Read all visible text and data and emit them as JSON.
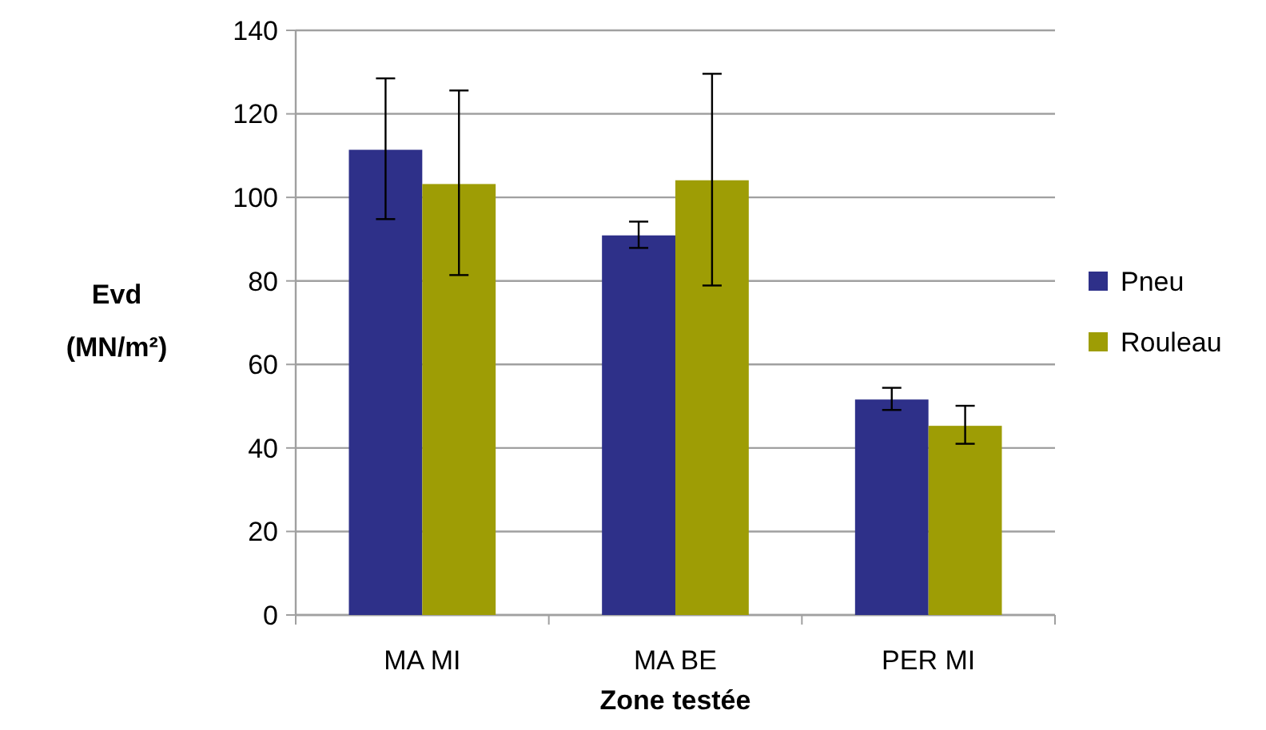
{
  "chart_data": {
    "type": "bar",
    "categories": [
      "MA MI",
      "MA BE",
      "PER MI"
    ],
    "xlabel": "Zone testée",
    "ylabel": "Evd (MN/m²)",
    "ylim": [
      0,
      140
    ],
    "yticks": [
      0,
      20,
      40,
      60,
      80,
      100,
      120,
      140
    ],
    "grid": "y",
    "legend": "right",
    "series": [
      {
        "name": "Pneu",
        "color": "#2e3089",
        "values": [
          111.4,
          90.9,
          51.6
        ],
        "errors": [
          [
            94.8,
            128.5
          ],
          [
            87.9,
            94.2
          ],
          [
            49.1,
            54.4
          ]
        ]
      },
      {
        "name": "Rouleau",
        "color": "#9e9d05",
        "values": [
          103.2,
          104.1,
          45.3
        ],
        "errors": [
          [
            81.4,
            125.6
          ],
          [
            78.9,
            129.6
          ],
          [
            41.0,
            50.1
          ]
        ]
      }
    ]
  }
}
